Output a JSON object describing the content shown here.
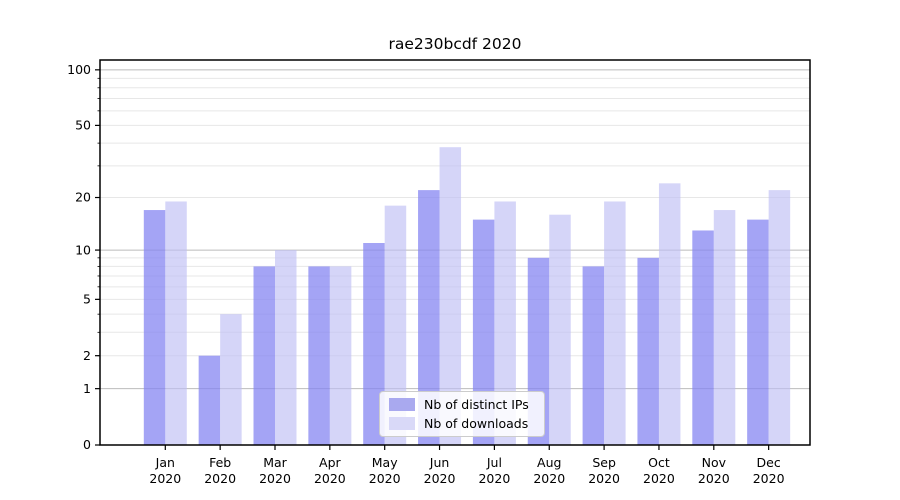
{
  "title": "rae230bcdf 2020",
  "chart_data": {
    "type": "bar",
    "title": "rae230bcdf 2020",
    "categories": [
      "Jan",
      "Feb",
      "Mar",
      "Apr",
      "May",
      "Jun",
      "Jul",
      "Aug",
      "Sep",
      "Oct",
      "Nov",
      "Dec"
    ],
    "category_year": "2020",
    "series": [
      {
        "name": "Nb of distinct IPs",
        "swatch_color": "#a9a9ef",
        "fill_color": "rgba(134,134,242,0.75)",
        "values": [
          17,
          2,
          8,
          8,
          11,
          22,
          15,
          9,
          8,
          9,
          13,
          15
        ]
      },
      {
        "name": "Nb of downloads",
        "swatch_color": "#d9d9f8",
        "fill_color": "rgba(190,190,245,0.65)",
        "values": [
          19,
          4,
          10,
          8,
          18,
          38,
          19,
          16,
          19,
          24,
          17,
          22
        ]
      }
    ],
    "yscale": "symlog (log1p)",
    "ylim": [
      0,
      113
    ],
    "yticks_labeled": [
      0,
      1,
      2,
      5,
      10,
      20,
      50,
      100
    ],
    "ygrid_major": [
      1,
      10,
      100
    ],
    "ygrid_minor": [
      2,
      3,
      4,
      5,
      6,
      7,
      8,
      9,
      20,
      30,
      40,
      50,
      60,
      70,
      80,
      90
    ],
    "grid": true,
    "legend_position": "bottom-center",
    "colors": {
      "grid_major": "#bbbbbb",
      "grid_minor": "#e7e7e7",
      "spine": "#000000",
      "text": "#000000"
    }
  }
}
